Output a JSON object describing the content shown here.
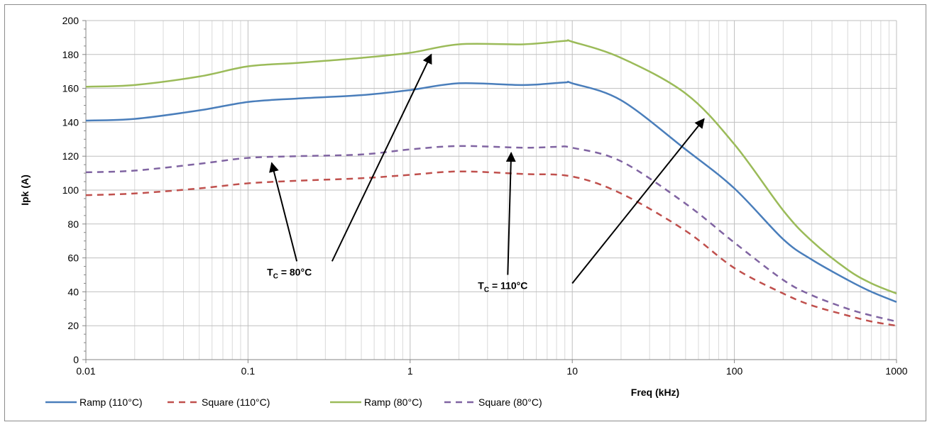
{
  "chart_data": {
    "type": "line",
    "title": "",
    "xlabel": "Freq (kHz)",
    "ylabel": "Ipk (A)",
    "x_scale": "log",
    "xlim": [
      0.01,
      1000
    ],
    "ylim": [
      0,
      200
    ],
    "x_ticks": [
      0.01,
      0.1,
      1,
      10,
      100,
      1000
    ],
    "x_tick_labels": [
      "0.01",
      "0.1",
      "1",
      "10",
      "100",
      "1000"
    ],
    "y_ticks": [
      0,
      20,
      40,
      60,
      80,
      100,
      120,
      140,
      160,
      180,
      200
    ],
    "y_tick_labels": [
      "0",
      "20",
      "40",
      "60",
      "80",
      "100",
      "120",
      "140",
      "160",
      "180",
      "200"
    ],
    "grid": "on",
    "legend_position": "bottom-left",
    "series": [
      {
        "name": "Ramp (110°C)",
        "color": "#4a7ebb",
        "dash": "solid",
        "points": [
          [
            0.01,
            141
          ],
          [
            0.02,
            142
          ],
          [
            0.05,
            147
          ],
          [
            0.1,
            152
          ],
          [
            0.2,
            154
          ],
          [
            0.5,
            156
          ],
          [
            1,
            159
          ],
          [
            2,
            163
          ],
          [
            5,
            162
          ],
          [
            9,
            163.5
          ],
          [
            10,
            163
          ],
          [
            20,
            153
          ],
          [
            50,
            124
          ],
          [
            100,
            101
          ],
          [
            200,
            71
          ],
          [
            300,
            59
          ],
          [
            500,
            47
          ],
          [
            700,
            40
          ],
          [
            1000,
            34
          ]
        ]
      },
      {
        "name": "Square (110°C)",
        "color": "#c0504d",
        "dash": "dashed",
        "points": [
          [
            0.01,
            97
          ],
          [
            0.02,
            98
          ],
          [
            0.05,
            101
          ],
          [
            0.1,
            104
          ],
          [
            0.2,
            105.5
          ],
          [
            0.5,
            107
          ],
          [
            1,
            109
          ],
          [
            2,
            111
          ],
          [
            5,
            109.5
          ],
          [
            10,
            108
          ],
          [
            20,
            98
          ],
          [
            50,
            76
          ],
          [
            100,
            54
          ],
          [
            200,
            39
          ],
          [
            300,
            32
          ],
          [
            500,
            26
          ],
          [
            700,
            22.5
          ],
          [
            1000,
            20
          ]
        ]
      },
      {
        "name": "Ramp (80°C)",
        "color": "#9bbb59",
        "dash": "solid",
        "points": [
          [
            0.01,
            161
          ],
          [
            0.02,
            162
          ],
          [
            0.05,
            167
          ],
          [
            0.1,
            173
          ],
          [
            0.2,
            175
          ],
          [
            0.5,
            178
          ],
          [
            1,
            181
          ],
          [
            2,
            186
          ],
          [
            5,
            186
          ],
          [
            9,
            188
          ],
          [
            10,
            187.5
          ],
          [
            20,
            178
          ],
          [
            50,
            157
          ],
          [
            100,
            127
          ],
          [
            200,
            88
          ],
          [
            300,
            70
          ],
          [
            500,
            53
          ],
          [
            700,
            45
          ],
          [
            1000,
            39
          ]
        ]
      },
      {
        "name": "Square (80°C)",
        "color": "#8064a2",
        "dash": "dashed",
        "points": [
          [
            0.01,
            110.5
          ],
          [
            0.02,
            111.5
          ],
          [
            0.05,
            115.5
          ],
          [
            0.1,
            119
          ],
          [
            0.2,
            120
          ],
          [
            0.5,
            121
          ],
          [
            1,
            124
          ],
          [
            2,
            126
          ],
          [
            5,
            125
          ],
          [
            8,
            125.5
          ],
          [
            10,
            125
          ],
          [
            20,
            117
          ],
          [
            50,
            92
          ],
          [
            100,
            69
          ],
          [
            200,
            47
          ],
          [
            300,
            38
          ],
          [
            500,
            30
          ],
          [
            700,
            26
          ],
          [
            1000,
            22.5
          ]
        ]
      }
    ],
    "annotations": [
      {
        "label_main": "T",
        "label_sub": "C",
        "label_rest": " = 80°C",
        "anchor": [
          0.2,
          58
        ],
        "arrows": [
          {
            "from": [
              0.2,
              58
            ],
            "to": [
              0.14,
              116
            ]
          },
          {
            "from": [
              0.33,
              58
            ],
            "to": [
              1.35,
              180
            ]
          }
        ]
      },
      {
        "label_main": "T",
        "label_sub": "C",
        "label_rest": " = 110°C",
        "anchor": [
          4,
          50
        ],
        "arrows": [
          {
            "from": [
              4,
              50
            ],
            "to": [
              4.2,
              122
            ]
          },
          {
            "from": [
              10,
              45
            ],
            "to": [
              65,
              142
            ]
          }
        ]
      }
    ]
  }
}
